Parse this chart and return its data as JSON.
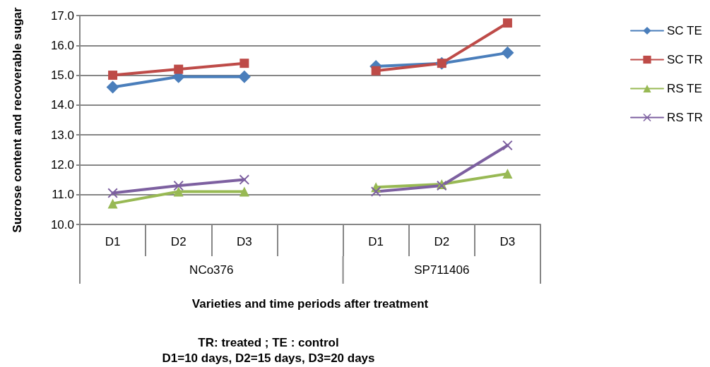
{
  "chart_data": {
    "type": "line",
    "xlabel": "Varieties and time periods after treatment",
    "ylabel": "Sucrose content and recoverable sugar",
    "categories": [
      "D1",
      "D2",
      "D3",
      null,
      "D1",
      "D2",
      "D3"
    ],
    "series": [
      {
        "name": "SC TE",
        "color": "#4a7ebb",
        "marker": "diamond",
        "values": [
          14.6,
          14.95,
          14.95,
          null,
          15.3,
          15.4,
          15.75
        ]
      },
      {
        "name": "SC TR",
        "color": "#be4b48",
        "marker": "square",
        "values": [
          15.0,
          15.2,
          15.4,
          null,
          15.15,
          15.4,
          16.75
        ]
      },
      {
        "name": "RS TE",
        "color": "#98b954",
        "marker": "triangle",
        "values": [
          10.7,
          11.1,
          11.1,
          null,
          11.25,
          11.35,
          11.7
        ]
      },
      {
        "name": "RS TR",
        "color": "#7d60a0",
        "marker": "cross",
        "values": [
          11.05,
          11.3,
          11.5,
          null,
          11.1,
          11.3,
          12.65
        ]
      }
    ],
    "ylim": [
      10,
      17
    ],
    "yticks": [
      {
        "value": 10,
        "label": "10.0"
      },
      {
        "value": 11,
        "label": "11.0"
      },
      {
        "value": 12,
        "label": "12.0"
      },
      {
        "value": 13,
        "label": "13.0"
      },
      {
        "value": 14,
        "label": "14.0"
      },
      {
        "value": 15,
        "label": "15.0"
      },
      {
        "value": 16,
        "label": "16.0"
      },
      {
        "value": 17,
        "label": "17.0"
      }
    ],
    "grid": "y",
    "legend": "right",
    "line_style": "solid",
    "annotations": [
      "NCo376",
      "SP711406",
      "TR: treated ; TE : control",
      "D1=10 days, D2=15 days, D3=20 days"
    ]
  }
}
